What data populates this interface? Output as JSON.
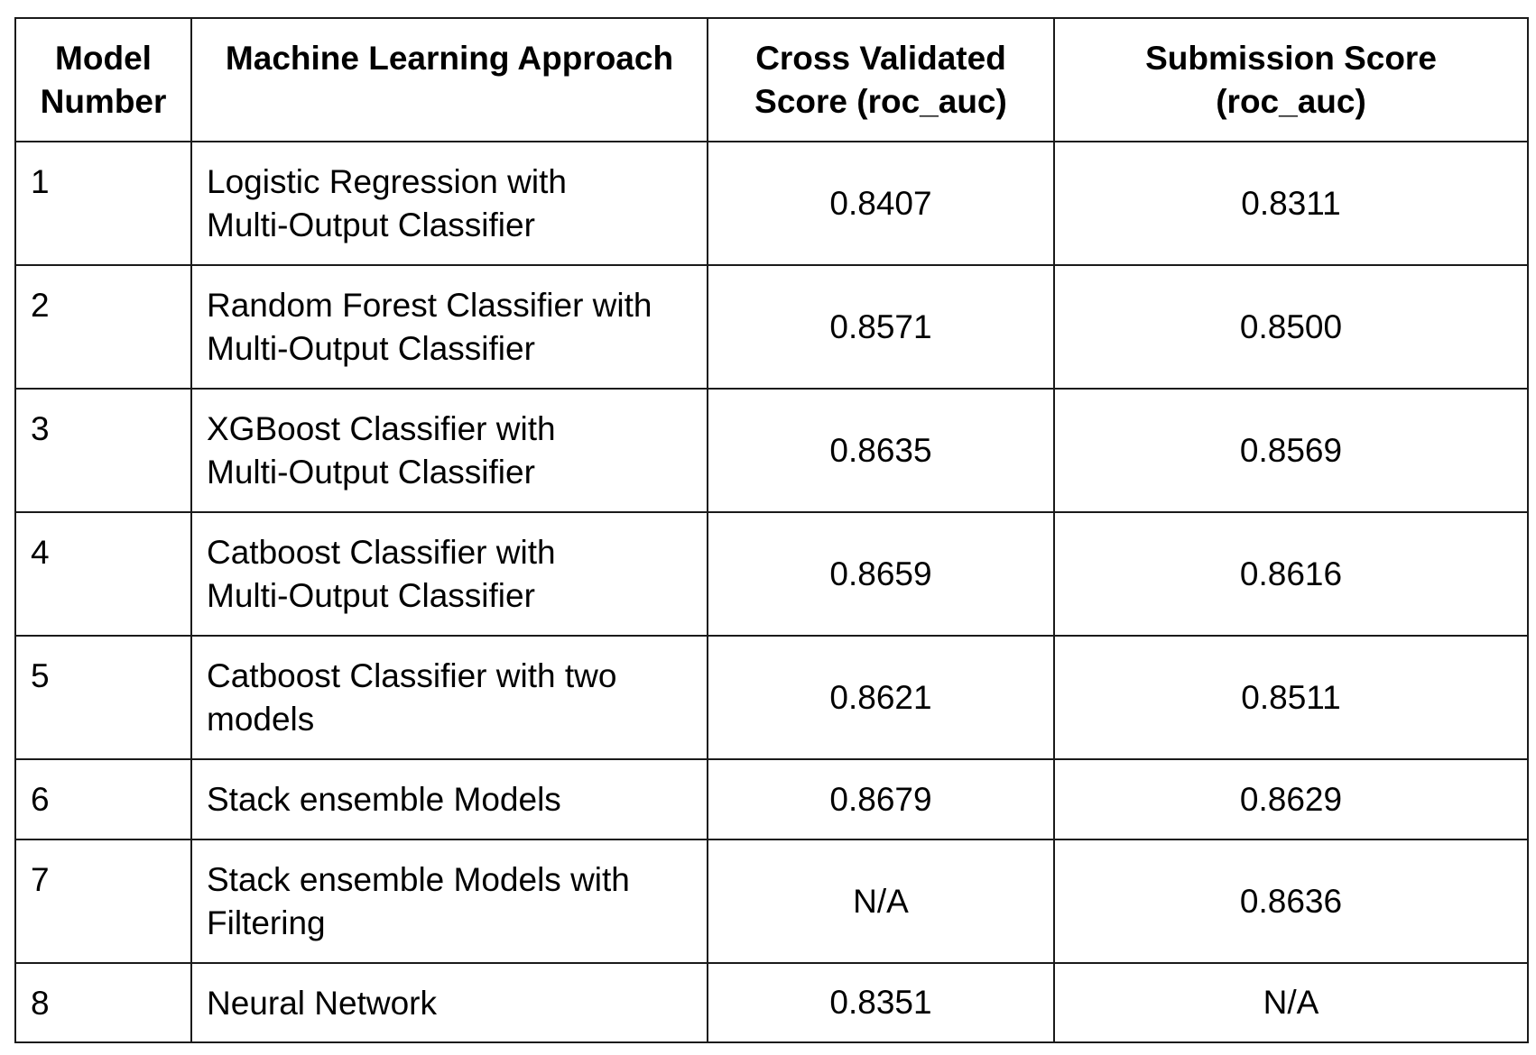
{
  "table": {
    "headers": {
      "model_number": "Model Number",
      "approach": "Machine Learning Approach",
      "cv_score": "Cross Validated Score (roc_auc)",
      "submission_score": "Submission Score (roc_auc)"
    },
    "rows": [
      {
        "model_number": "1",
        "approach": "Logistic Regression with Multi-Output Classifier",
        "cv_score": "0.8407",
        "submission_score": "0.8311"
      },
      {
        "model_number": "2",
        "approach": "Random Forest Classifier with Multi-Output Classifier",
        "cv_score": "0.8571",
        "submission_score": "0.8500"
      },
      {
        "model_number": "3",
        "approach": "XGBoost Classifier with Multi-Output Classifier",
        "cv_score": "0.8635",
        "submission_score": "0.8569"
      },
      {
        "model_number": "4",
        "approach": "Catboost Classifier with Multi-Output Classifier",
        "cv_score": "0.8659",
        "submission_score": "0.8616"
      },
      {
        "model_number": "5",
        "approach": "Catboost Classifier with two models",
        "cv_score": "0.8621",
        "submission_score": "0.8511"
      },
      {
        "model_number": "6",
        "approach": "Stack ensemble Models",
        "cv_score": "0.8679",
        "submission_score": "0.8629"
      },
      {
        "model_number": "7",
        "approach": "Stack ensemble Models with Filtering",
        "cv_score": "N/A",
        "submission_score": "0.8636"
      },
      {
        "model_number": "8",
        "approach": "Neural Network",
        "cv_score": "0.8351",
        "submission_score": "N/A"
      }
    ]
  }
}
